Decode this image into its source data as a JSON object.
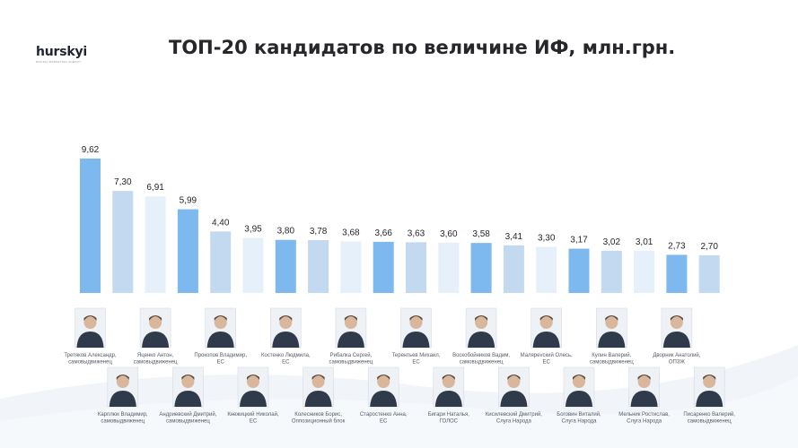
{
  "logo": {
    "name": "hurskyi",
    "tagline": "DIGITAL MARKETING AGENCY"
  },
  "chart_data": {
    "type": "bar",
    "title": "ТОП-20 кандидатов по величине ИФ, млн.грн.",
    "ylim": [
      0,
      10
    ],
    "grid": false,
    "legend": "none",
    "categories": [
      "Третяков Александр, самовыдвиженец",
      "Карплюк Владимир, самовыдвиженец",
      "Яценко Антон, самовыдвиженец",
      "Андриевский Дмитрий, самовыдвиженец",
      "Прокопов Владимир, ЕС",
      "Кнежицкий Николай, ЕС",
      "Костенко Людмила, ЕС",
      "Колесников Борис, Оппозиционный блок",
      "Рибалка Сергей, самовыдвиженец",
      "Старостенко Анна, ЕС",
      "Терентьев Михаил, ЕС",
      "Бигари Наталья, ГОЛОС",
      "Воскобойников Вадим, самовыдвиженец",
      "Кисилевский Дмитрий, Слуга Народа",
      "Малярevский Олесь, ЕС",
      "Боговин Виталий, Слуга Народа",
      "Кулин Валерий, самовыдвиженец",
      "Мельник Ростислав, Слуга Народа",
      "Дворник Анатолий, ОПЗЖ",
      "Писаренко Валерий, самовыдвиженец"
    ],
    "values": [
      9.62,
      7.3,
      6.91,
      5.99,
      4.4,
      3.95,
      3.8,
      3.78,
      3.68,
      3.66,
      3.63,
      3.6,
      3.58,
      3.41,
      3.3,
      3.17,
      3.02,
      3.01,
      2.73,
      2.7
    ],
    "value_labels": [
      "9,62",
      "7,30",
      "6,91",
      "5,99",
      "4,40",
      "3,95",
      "3,80",
      "3,78",
      "3,68",
      "3,66",
      "3,63",
      "3,60",
      "3,58",
      "3,41",
      "3,30",
      "3,17",
      "3,02",
      "3,01",
      "2,73",
      "2,70"
    ],
    "bar_colors": [
      "#7db9ee",
      "#c2d9ef",
      "#e6f0fa",
      "#7db9ee",
      "#c2d9ef",
      "#e6f0fa",
      "#7db9ee",
      "#c2d9ef",
      "#e6f0fa",
      "#7db9ee",
      "#c2d9ef",
      "#e6f0fa",
      "#7db9ee",
      "#c2d9ef",
      "#e6f0fa",
      "#7db9ee",
      "#c2d9ef",
      "#e6f0fa",
      "#7db9ee",
      "#c2d9ef"
    ],
    "label_lines": [
      [
        "Третяков Александр,",
        "самовыдвиженец"
      ],
      [
        "Карплюк Владимир,",
        "самовыдвиженец"
      ],
      [
        "Яценко Антон,",
        "самовыдвиженец"
      ],
      [
        "Андриевский Дмитрий,",
        "самовыдвиженец"
      ],
      [
        "Прокопов Владимир,",
        "ЕС"
      ],
      [
        "Кнежицкий Николай,",
        "ЕС"
      ],
      [
        "Костенко Людмила,",
        "ЕС"
      ],
      [
        "Колесников Борис,",
        "Оппозиционный блок"
      ],
      [
        "Рибалка Сергей,",
        "самовыдвиженец"
      ],
      [
        "Старостенко Анна,",
        "ЕС"
      ],
      [
        "Терентьев Михаил,",
        "ЕС"
      ],
      [
        "Бигари Наталья,",
        "ГОЛОС"
      ],
      [
        "Воскобойников Вадим,",
        "самовыдвиженец"
      ],
      [
        "Кисилевский Дмитрий,",
        "Слуга Народа"
      ],
      [
        "Малярevский Олесь,",
        "ЕС"
      ],
      [
        "Боговин Виталий,",
        "Слуга Народа"
      ],
      [
        "Кулин Валерий,",
        "самовыдвиженец"
      ],
      [
        "Мельник Ростислав,",
        "Слуга Народа"
      ],
      [
        "Дворник Анатолий,",
        "ОПЗЖ"
      ],
      [
        "Писаренко Валерий,",
        "самовыдвиженец"
      ]
    ],
    "label_rows": [
      "top",
      "bottom",
      "top",
      "bottom",
      "top",
      "bottom",
      "top",
      "bottom",
      "top",
      "bottom",
      "top",
      "bottom",
      "top",
      "bottom",
      "top",
      "bottom",
      "top",
      "bottom",
      "top",
      "bottom"
    ]
  },
  "colors": {
    "text_dark": "#26262b",
    "label_text": "#555b66",
    "wave": "#eef3f9"
  }
}
